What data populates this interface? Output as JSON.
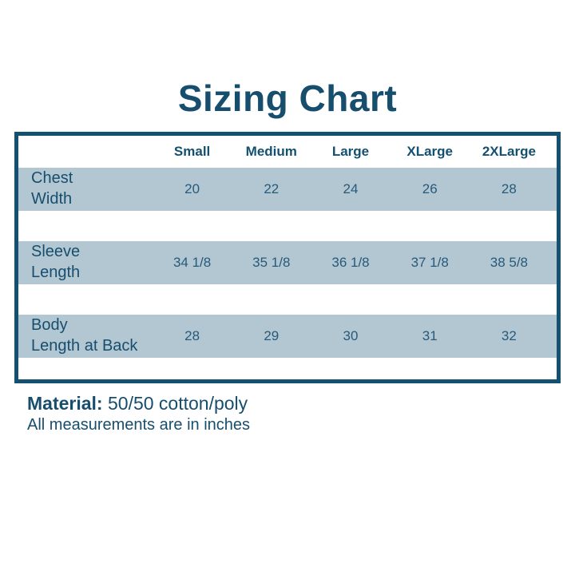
{
  "page": {
    "title": "Sizing Chart"
  },
  "chart_data": {
    "type": "table",
    "title": "Sizing Chart",
    "columns": [
      "Small",
      "Medium",
      "Large",
      "XLarge",
      "2XLarge"
    ],
    "rows": [
      {
        "label": "Chest Width",
        "label_lines": [
          "Chest",
          "Width"
        ],
        "values": [
          "20",
          "22",
          "24",
          "26",
          "28"
        ]
      },
      {
        "label": "Sleeve Length",
        "label_lines": [
          "Sleeve",
          "Length"
        ],
        "values": [
          "34 1/8",
          "35 1/8",
          "36 1/8",
          "37 1/8",
          "38 5/8"
        ]
      },
      {
        "label": "Body Length at Back",
        "label_lines": [
          "Body",
          "Length at Back"
        ],
        "values": [
          "28",
          "29",
          "30",
          "31",
          "32"
        ]
      }
    ],
    "notes": [
      "Material: 50/50 cotton/poly",
      "All measurements are in inches"
    ]
  },
  "footer": {
    "material_label": "Material:",
    "material_value": " 50/50 cotton/poly",
    "note": "All measurements are in inches"
  },
  "colors": {
    "accent": "#174e6e",
    "border": "#14506f",
    "row_band": "#b3c7d2"
  }
}
